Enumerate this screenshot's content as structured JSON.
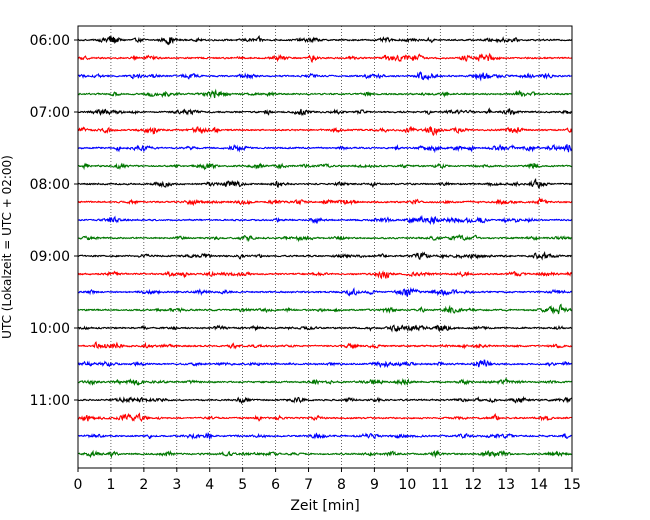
{
  "chart_data": {
    "type": "line",
    "title": "",
    "xlabel": "Zeit  [min]",
    "ylabel": "UTC (Lokalzeit = UTC + 02:00)",
    "xlim": [
      0,
      15
    ],
    "x_ticks": [
      0,
      1,
      2,
      3,
      4,
      5,
      6,
      7,
      8,
      9,
      10,
      11,
      12,
      13,
      14,
      15
    ],
    "y_ticks": [
      "06:00",
      "07:00",
      "08:00",
      "09:00",
      "10:00",
      "11:00"
    ],
    "grid": "vertical dotted",
    "legend": "none",
    "trace_colors": [
      "#000000",
      "#ff0000",
      "#0000ff",
      "#007700"
    ],
    "traces_per_hour": 4,
    "trace_start_times": [
      "06:00",
      "06:15",
      "06:30",
      "06:45",
      "07:00",
      "07:15",
      "07:30",
      "07:45",
      "08:00",
      "08:15",
      "08:30",
      "08:45",
      "09:00",
      "09:15",
      "09:30",
      "09:45",
      "10:00",
      "10:15",
      "10:30",
      "10:45",
      "11:00",
      "11:15",
      "11:30",
      "11:45"
    ]
  }
}
